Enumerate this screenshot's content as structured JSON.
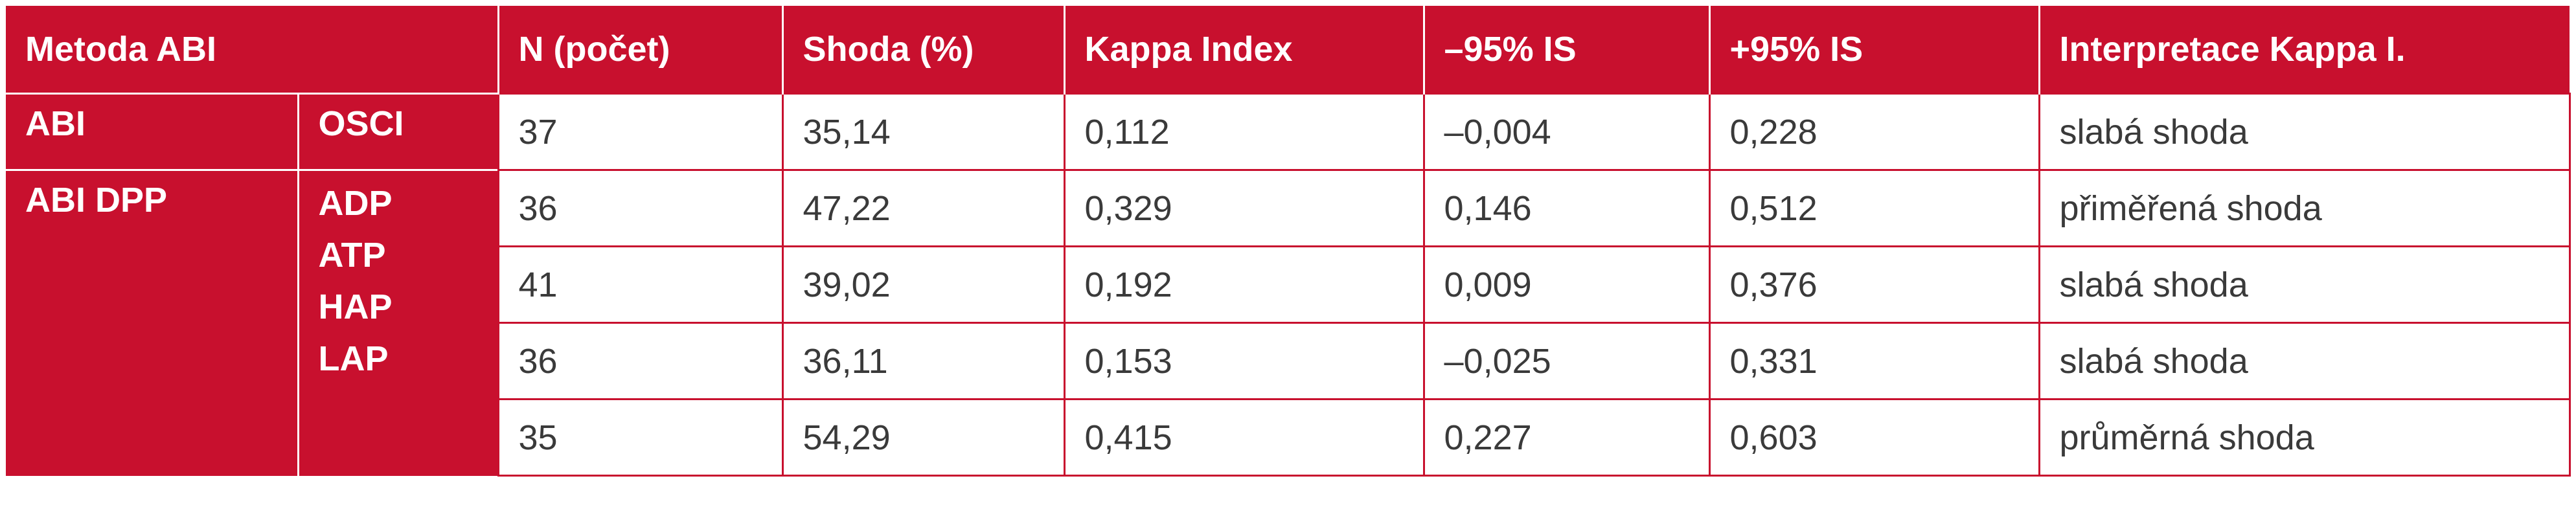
{
  "header": {
    "method": "Metoda ABI",
    "n": "N (počet)",
    "agreement": "Shoda  (%)",
    "kappa": "Kappa Index",
    "ci_low": "–95% IS",
    "ci_high": "+95% IS",
    "interpretation": "Interpretace Kappa I."
  },
  "groups": {
    "abi": {
      "label": "ABI",
      "sub": "OSCI"
    },
    "dpp": {
      "label": "ABI  DPP",
      "sub": [
        "ADP",
        "ATP",
        "HAP",
        "LAP"
      ]
    }
  },
  "rows": [
    {
      "n": "37",
      "agreement": "35,14",
      "kappa": "0,112",
      "ci_low": "–0,004",
      "ci_high": "0,228",
      "interpretation": "slabá shoda"
    },
    {
      "n": "36",
      "agreement": "47,22",
      "kappa": "0,329",
      "ci_low": "0,146",
      "ci_high": "0,512",
      "interpretation": "přiměřená shoda"
    },
    {
      "n": "41",
      "agreement": "39,02",
      "kappa": "0,192",
      "ci_low": "0,009",
      "ci_high": "0,376",
      "interpretation": "slabá shoda"
    },
    {
      "n": "36",
      "agreement": "36,11",
      "kappa": "0,153",
      "ci_low": "–0,025",
      "ci_high": "0,331",
      "interpretation": "slabá shoda"
    },
    {
      "n": "35",
      "agreement": "54,29",
      "kappa": "0,415",
      "ci_low": "0,227",
      "ci_high": "0,603",
      "interpretation": "průměrná shoda"
    }
  ],
  "colors": {
    "accent": "#c8102e",
    "text": "#3a3a3a",
    "background": "#ffffff"
  }
}
